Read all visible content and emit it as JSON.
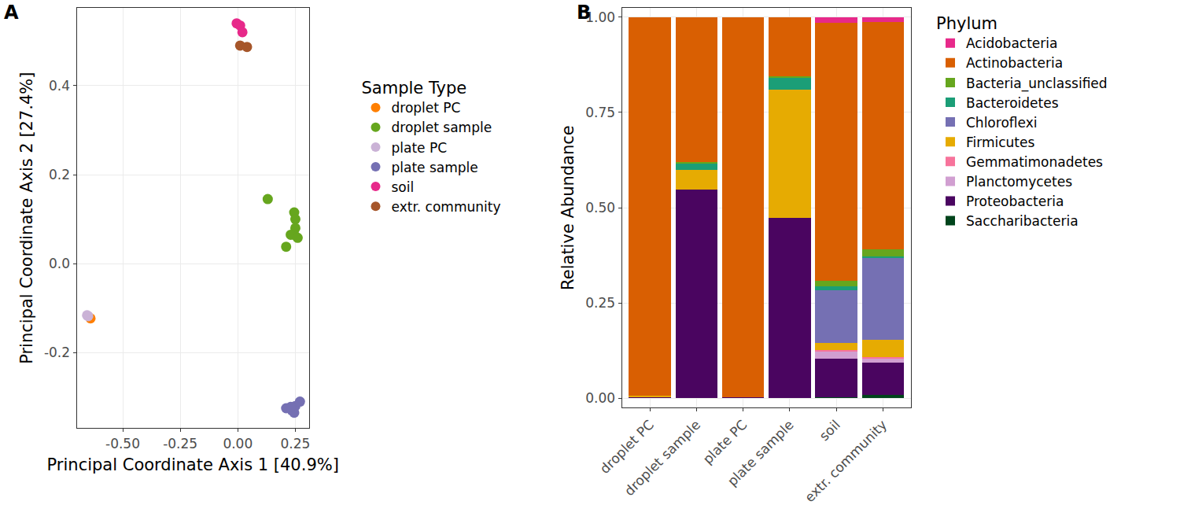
{
  "chart_data": [
    {
      "type": "scatter",
      "title": "A",
      "x_label": "Principal Coordinate Axis 1 [40.9%]",
      "y_label": "Principal Coordinate Axis 2 [27.4%]",
      "legend_title": "Sample Type",
      "xlim": [
        -0.7,
        0.31
      ],
      "ylim": [
        -0.37,
        0.575
      ],
      "xticks": [
        {
          "value": -0.5,
          "label": "-0.50"
        },
        {
          "value": -0.25,
          "label": "-0.25"
        },
        {
          "value": 0,
          "label": "0.00"
        },
        {
          "value": 0.25,
          "label": "0.25"
        }
      ],
      "yticks": [
        {
          "value": -0.2,
          "label": "-0.2"
        },
        {
          "value": 0,
          "label": "0.0"
        },
        {
          "value": 0.2,
          "label": "0.2"
        },
        {
          "value": 0.4,
          "label": "0.4"
        }
      ],
      "grid": true,
      "series": [
        {
          "name": "droplet PC",
          "color": "#FF7F00",
          "x": [
            -0.64
          ],
          "y": [
            -0.123
          ]
        },
        {
          "name": "droplet sample",
          "color": "#66A61E",
          "x": [
            0.13,
            0.245,
            0.25,
            0.25,
            0.245,
            0.23,
            0.26,
            0.21
          ],
          "y": [
            0.145,
            0.115,
            0.1,
            0.08,
            0.065,
            0.065,
            0.058,
            0.038
          ]
        },
        {
          "name": "plate PC",
          "color": "#CAB2D6",
          "x": [
            -0.65,
            -0.655
          ],
          "y": [
            -0.118,
            -0.116
          ]
        },
        {
          "name": "plate sample",
          "color": "#7570B3",
          "x": [
            0.21,
            0.235,
            0.245,
            0.25,
            0.27,
            0.23
          ],
          "y": [
            -0.325,
            -0.33,
            -0.335,
            -0.32,
            -0.31,
            -0.322
          ]
        },
        {
          "name": "soil",
          "color": "#E7298A",
          "x": [
            -0.005,
            0.01,
            0.02
          ],
          "y": [
            0.54,
            0.535,
            0.52
          ]
        },
        {
          "name": "extr. community",
          "color": "#A6562A",
          "x": [
            0.01,
            0.04
          ],
          "y": [
            0.49,
            0.487
          ]
        }
      ]
    },
    {
      "type": "bar",
      "title": "B",
      "stacked": true,
      "y_label": "Relative Abundance",
      "legend_title": "Phylum",
      "categories": [
        "droplet PC",
        "droplet sample",
        "plate PC",
        "plate sample",
        "soil",
        "extr. community"
      ],
      "ylim": [
        -0.025,
        1.025
      ],
      "yticks": [
        {
          "value": 0,
          "label": "0.00"
        },
        {
          "value": 0.25,
          "label": "0.25"
        },
        {
          "value": 0.5,
          "label": "0.50"
        },
        {
          "value": 0.75,
          "label": "0.75"
        },
        {
          "value": 1,
          "label": "1.00"
        }
      ],
      "grid": true,
      "series": [
        {
          "name": "Acidobacteria",
          "color": "#E7298A",
          "values": [
            0,
            0,
            0,
            0,
            0.015,
            0.012
          ]
        },
        {
          "name": "Actinobacteria",
          "color": "#D95F02",
          "values": [
            0.994,
            0.38,
            0.997,
            0.155,
            0.677,
            0.598
          ]
        },
        {
          "name": "Bacteria_unclassified",
          "color": "#66A61E",
          "values": [
            0,
            0.005,
            0,
            0.005,
            0.014,
            0.017
          ]
        },
        {
          "name": "Bacteroidetes",
          "color": "#1B9E77",
          "values": [
            0,
            0.015,
            0,
            0.03,
            0.01,
            0.005
          ]
        },
        {
          "name": "Chloroflexi",
          "color": "#7570B3",
          "values": [
            0,
            0,
            0,
            0,
            0.14,
            0.215
          ]
        },
        {
          "name": "Firmicutes",
          "color": "#E6AB02",
          "values": [
            0.003,
            0.052,
            0,
            0.337,
            0.018,
            0.045
          ]
        },
        {
          "name": "Gemmatimonadetes",
          "color": "#F7739B",
          "values": [
            0,
            0,
            0,
            0,
            0.003,
            0.005
          ]
        },
        {
          "name": "Planctomycetes",
          "color": "#D19FD1",
          "values": [
            0,
            0,
            0,
            0,
            0.02,
            0.01
          ]
        },
        {
          "name": "Proteobacteria",
          "color": "#4A0560",
          "values": [
            0.003,
            0.548,
            0.003,
            0.473,
            0.1,
            0.085
          ]
        },
        {
          "name": "Saccharibacteria",
          "color": "#00441B",
          "values": [
            0,
            0,
            0,
            0,
            0.003,
            0.008
          ]
        }
      ]
    }
  ]
}
